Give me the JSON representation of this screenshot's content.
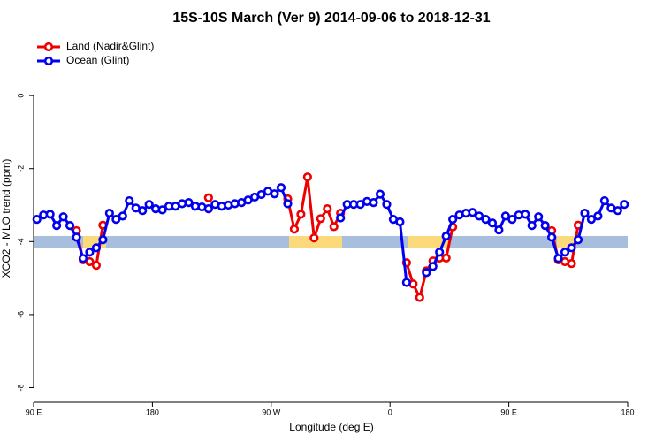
{
  "chart_data": {
    "type": "line",
    "title": "15S-10S March (Ver 9)   2014-09-06 to 2018-12-31",
    "x_label": "Longitude (deg E)",
    "y_label": "XCO2 - MLO trend (ppm)",
    "xlim": [
      90,
      540
    ],
    "ylim": [
      -8.4,
      1.65
    ],
    "xticks": [
      {
        "value": 90,
        "label": "90 E"
      },
      180,
      {
        "value": 270,
        "label": "90 W"
      },
      {
        "value": 360,
        "label": "0"
      },
      {
        "value": 450,
        "label": "90 E"
      },
      {
        "value": 540,
        "label": "180"
      }
    ],
    "yticks": [
      -8,
      -6,
      -4,
      -2,
      0
    ],
    "legend": "top-left",
    "x": [
      92.5,
      97.5,
      102.5,
      107.5,
      112.5,
      117.5,
      122.5,
      127.5,
      132.5,
      137.5,
      142.5,
      147.5,
      152.5,
      157.5,
      162.5,
      167.5,
      172.5,
      177.5,
      182.5,
      187.5,
      192.5,
      197.5,
      202.5,
      207.5,
      212.5,
      217.5,
      222.5,
      227.5,
      232.5,
      237.5,
      242.5,
      247.5,
      252.5,
      257.5,
      262.5,
      267.5,
      272.5,
      277.5,
      282.5,
      287.5,
      292.5,
      297.5,
      302.5,
      307.5,
      312.5,
      317.5,
      322.5,
      327.5,
      332.5,
      337.5,
      342.5,
      347.5,
      352.5,
      357.5,
      362.5,
      367.5,
      372.5,
      377.5,
      382.5,
      387.5,
      392.5,
      397.5,
      402.5,
      407.5,
      412.5,
      417.5,
      422.5,
      427.5,
      432.5,
      437.5,
      442.5,
      447.5,
      452.5,
      457.5,
      462.5,
      467.5,
      472.5,
      477.5,
      482.5,
      487.5,
      492.5,
      497.5,
      502.5,
      507.5,
      512.5,
      517.5,
      522.5,
      527.5,
      532.5,
      537.5
    ],
    "series": [
      {
        "name": "Land (Nadir&Glint)",
        "color": "#ee0000",
        "values": [
          null,
          null,
          null,
          null,
          null,
          null,
          -3.7,
          -4.5,
          -4.55,
          -4.65,
          -3.55,
          null,
          null,
          null,
          null,
          null,
          null,
          null,
          null,
          null,
          null,
          null,
          null,
          null,
          null,
          null,
          -2.8,
          null,
          null,
          null,
          null,
          null,
          null,
          null,
          null,
          null,
          null,
          null,
          -2.83,
          -3.66,
          -3.25,
          -2.23,
          -3.9,
          -3.37,
          -3.1,
          -3.59,
          -3.22,
          null,
          null,
          null,
          null,
          null,
          null,
          null,
          null,
          null,
          -4.58,
          -5.16,
          -5.53,
          -4.8,
          -4.53,
          -4.45,
          -4.45,
          -3.6,
          null,
          null,
          null,
          null,
          null,
          null,
          null,
          null,
          null,
          null,
          null,
          null,
          null,
          null,
          -3.7,
          -4.5,
          -4.55,
          -4.6,
          -3.55,
          null,
          null,
          null,
          null,
          null,
          null,
          null
        ]
      },
      {
        "name": "Ocean (Glint)",
        "color": "#0000ee",
        "values": [
          -3.39,
          -3.27,
          -3.25,
          -3.56,
          -3.32,
          -3.56,
          -3.88,
          -4.46,
          -4.29,
          -4.17,
          -3.95,
          -3.22,
          -3.39,
          -3.3,
          -2.88,
          -3.08,
          -3.15,
          -2.98,
          -3.1,
          -3.13,
          -3.03,
          -3.03,
          -2.96,
          -2.93,
          -3.03,
          -3.05,
          -3.1,
          -2.98,
          -3.03,
          -3.0,
          -2.96,
          -2.93,
          -2.86,
          -2.78,
          -2.71,
          -2.62,
          -2.69,
          -2.52,
          -2.96,
          null,
          null,
          null,
          null,
          null,
          null,
          null,
          -3.35,
          -2.98,
          -2.98,
          -2.98,
          -2.9,
          -2.93,
          -2.7,
          -2.98,
          -3.39,
          -3.46,
          -5.12,
          null,
          null,
          -4.85,
          -4.68,
          -4.29,
          -3.85,
          -3.39,
          -3.27,
          -3.22,
          -3.2,
          -3.3,
          -3.39,
          -3.49,
          -3.68,
          -3.3,
          -3.39,
          -3.27,
          -3.25,
          -3.56,
          -3.32,
          -3.56,
          -3.88,
          -4.46,
          -4.29,
          -4.17,
          -3.95,
          -3.22,
          -3.39,
          -3.3,
          -2.88,
          -3.08,
          -3.15,
          -2.98
        ]
      }
    ]
  }
}
